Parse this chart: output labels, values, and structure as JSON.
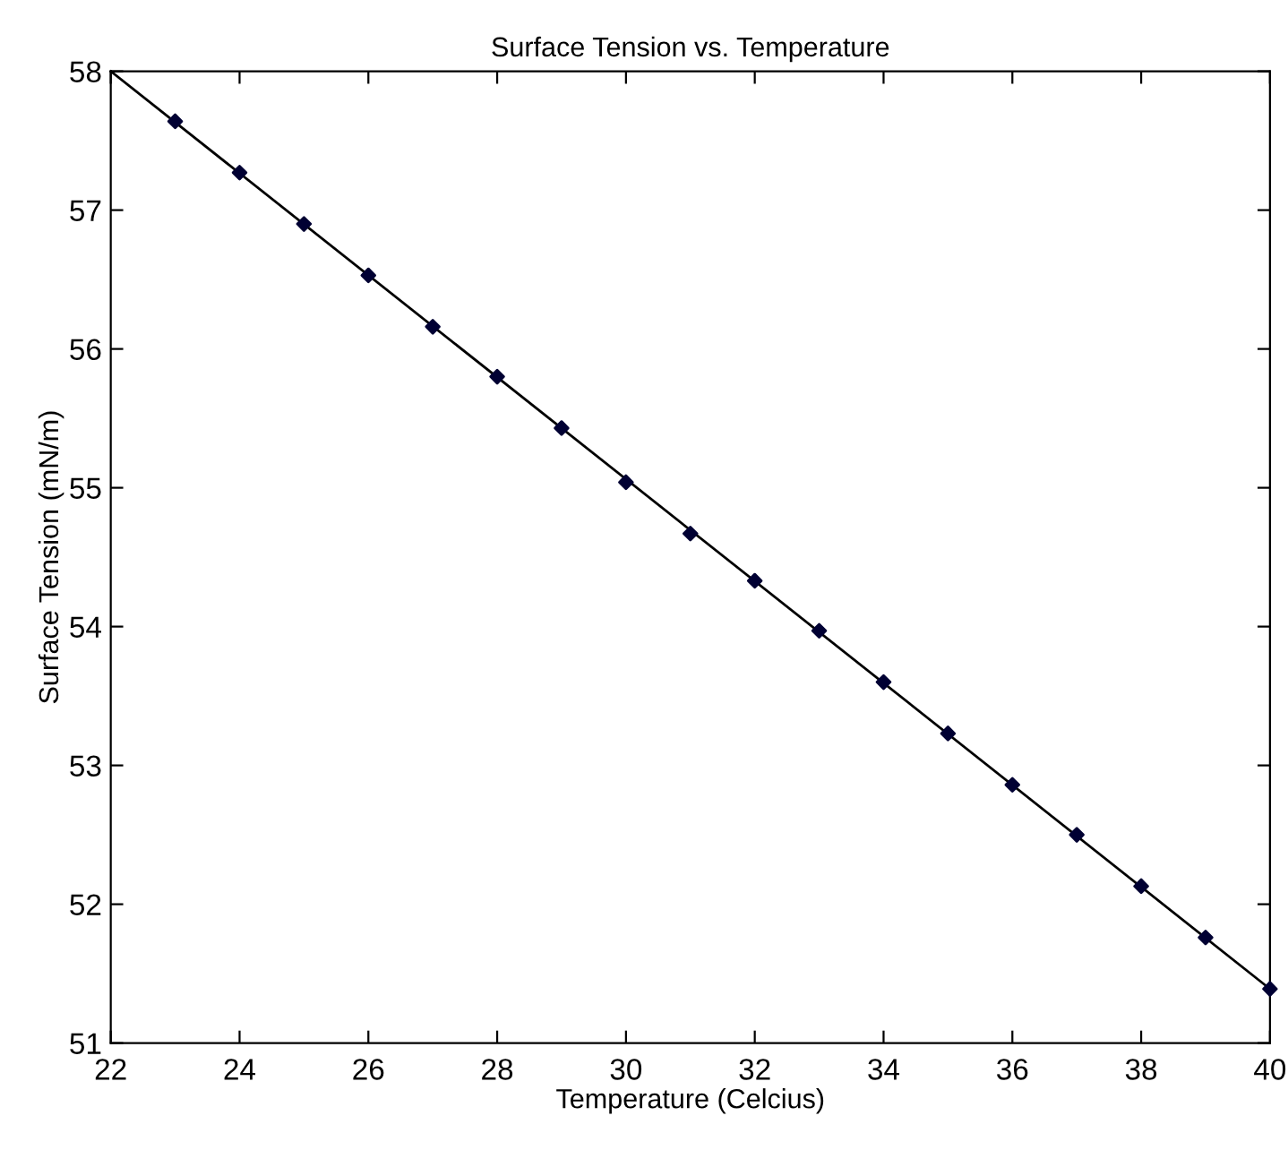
{
  "chart_data": {
    "type": "line",
    "title": "Surface Tension vs. Temperature",
    "xlabel": "Temperature (Celcius)",
    "ylabel": "Surface Tension (mN/m)",
    "xlim": [
      22,
      40
    ],
    "ylim": [
      51,
      58
    ],
    "xticks": [
      22,
      24,
      26,
      28,
      30,
      32,
      34,
      36,
      38,
      40
    ],
    "yticks": [
      51,
      52,
      53,
      54,
      55,
      56,
      57,
      58
    ],
    "grid": false,
    "legend": false,
    "series": [
      {
        "color": "#000000",
        "marker": "none",
        "x": [
          22,
          40
        ],
        "values": [
          58,
          51.39
        ]
      },
      {
        "type": "scatter",
        "color": "#000033",
        "marker": "diamond",
        "x": [
          23,
          24,
          25,
          26,
          27,
          28,
          29,
          30,
          31,
          32,
          33,
          34,
          35,
          36,
          37,
          38,
          39,
          40
        ],
        "values": [
          57.64,
          57.27,
          56.9,
          56.53,
          56.16,
          55.8,
          55.43,
          55.04,
          54.67,
          54.33,
          53.97,
          53.6,
          53.23,
          52.86,
          52.5,
          52.13,
          51.76,
          51.39
        ]
      }
    ]
  }
}
